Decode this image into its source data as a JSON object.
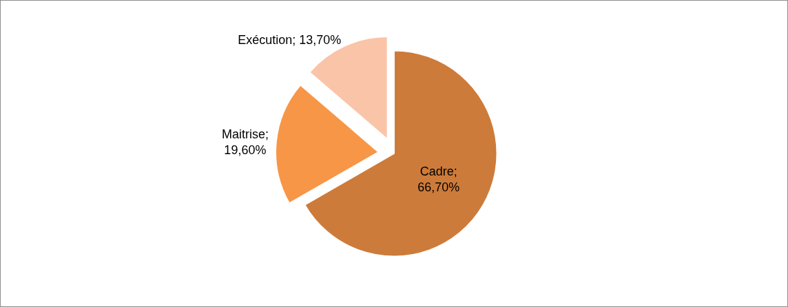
{
  "chart_data": {
    "type": "pie",
    "categories": [
      "Cadre",
      "Maitrise",
      "Exécution"
    ],
    "values": [
      66.7,
      19.6,
      13.7
    ],
    "colors": [
      "#cd7b3a",
      "#f79646",
      "#fac4a8"
    ],
    "value_labels": [
      "; 66,70%",
      "; 19,60%",
      "; 13,70%"
    ],
    "legend": false
  }
}
